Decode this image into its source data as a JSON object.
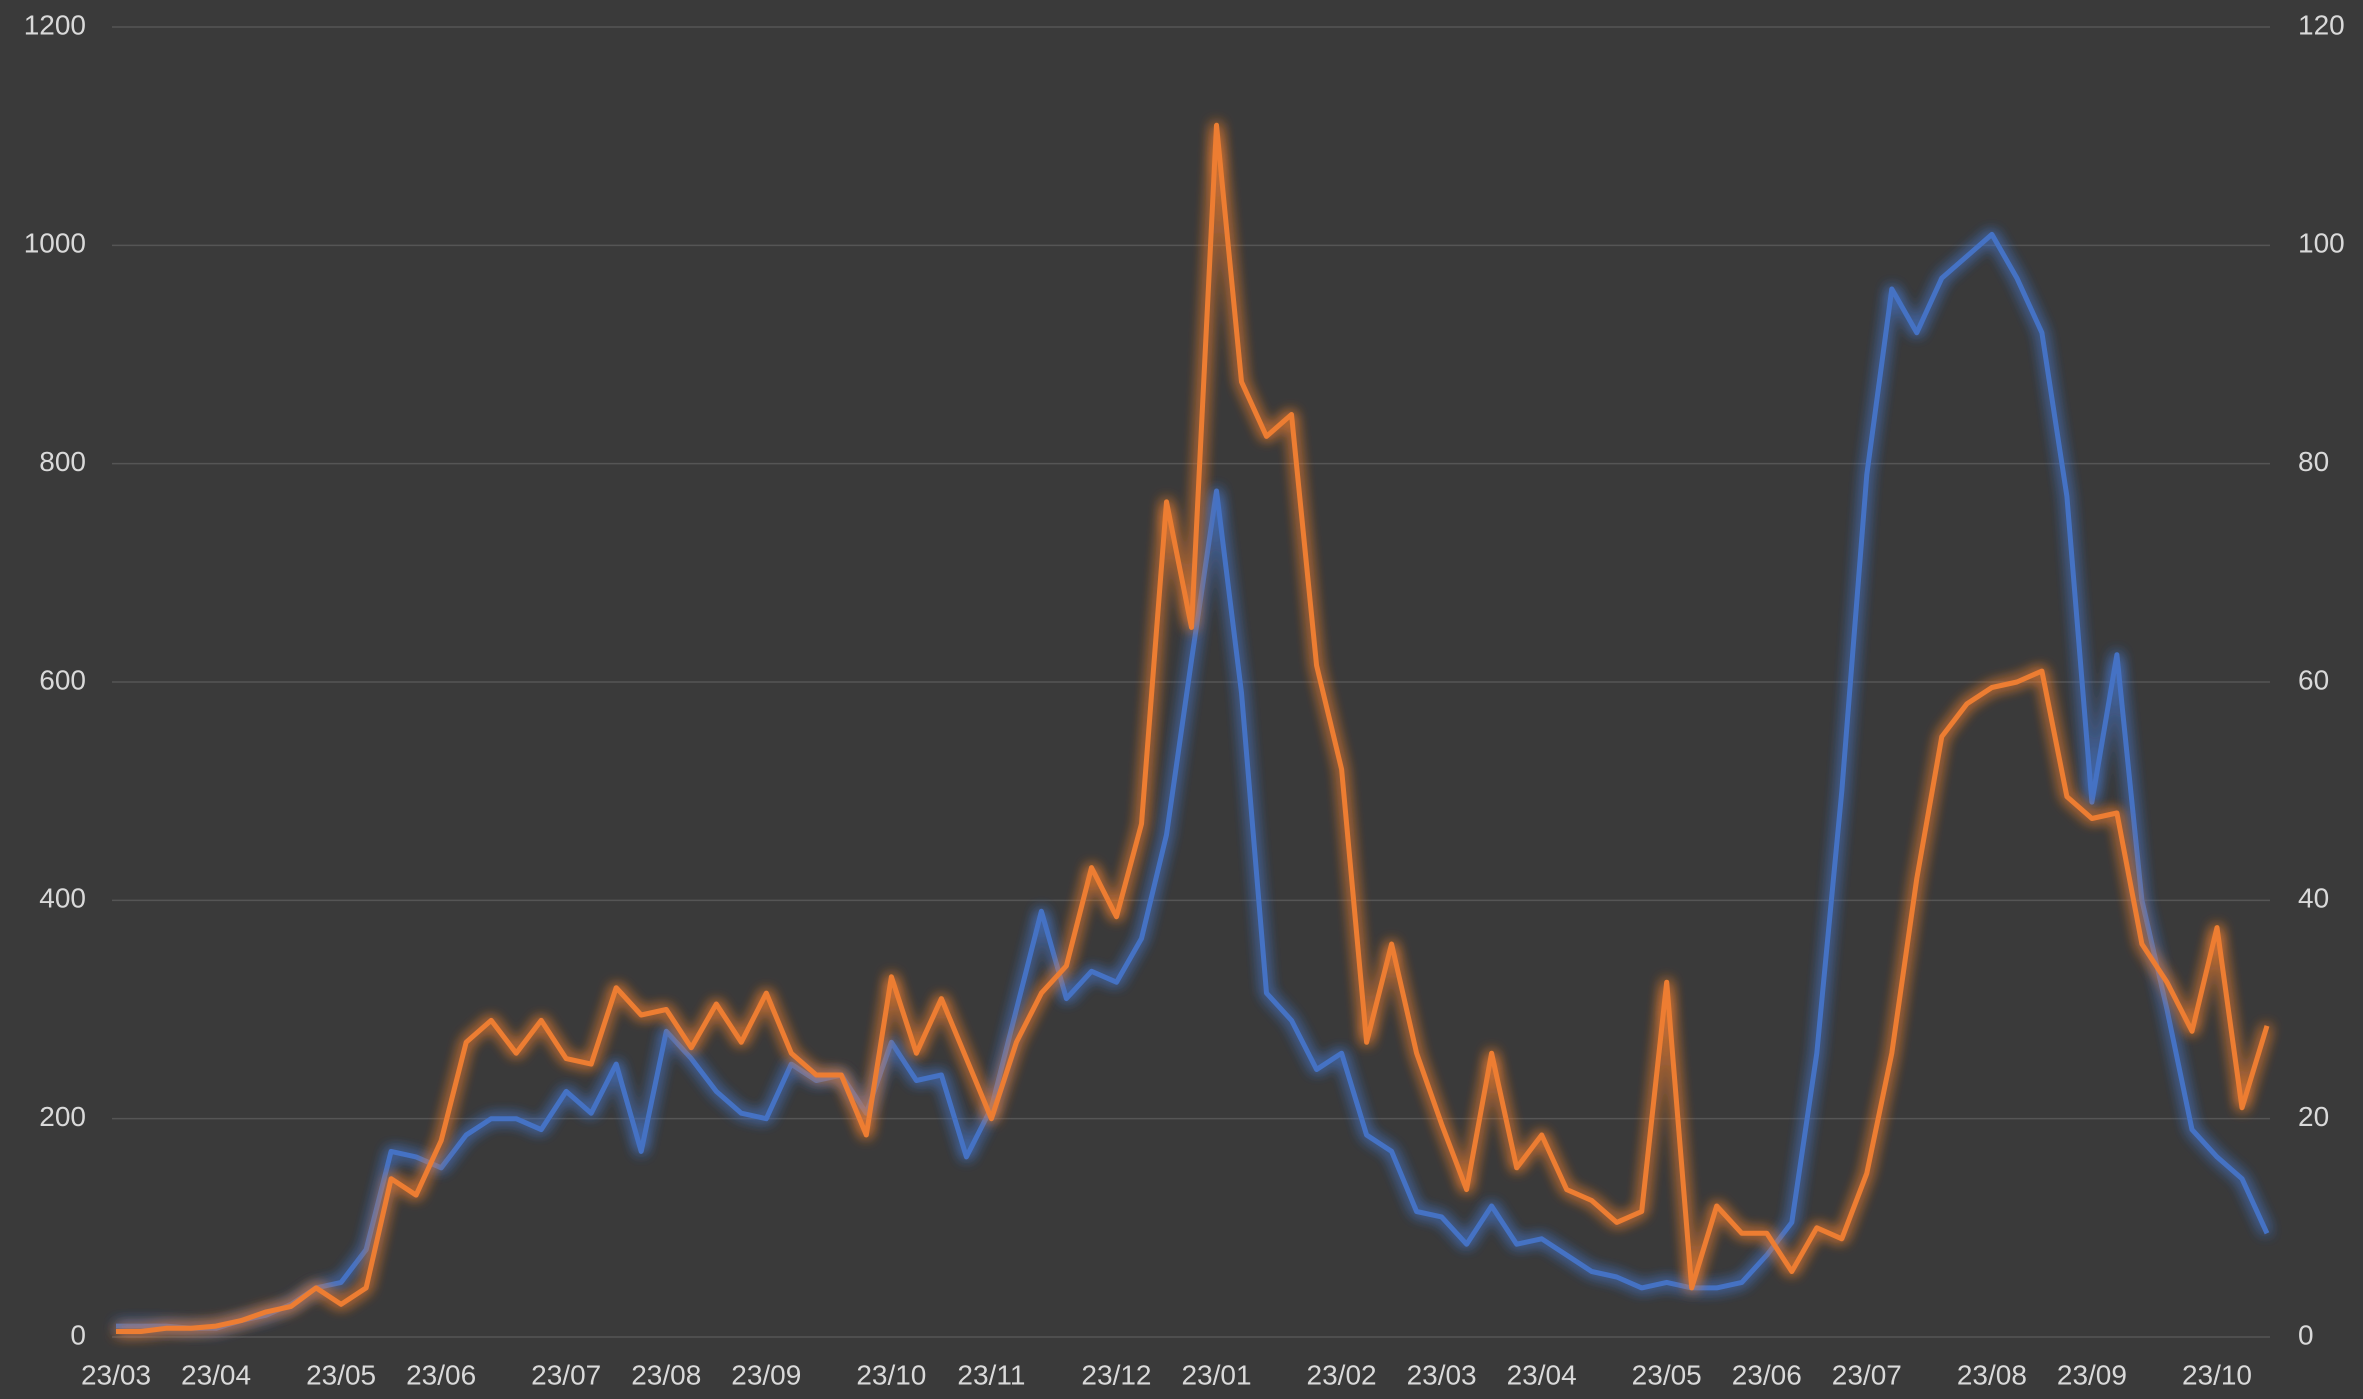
{
  "chart_data": {
    "type": "line",
    "categories": [
      "23/03",
      null,
      null,
      null,
      "23/04",
      null,
      null,
      null,
      null,
      "23/05",
      null,
      null,
      null,
      "23/06",
      null,
      null,
      null,
      null,
      "23/07",
      null,
      null,
      null,
      "23/08",
      null,
      null,
      null,
      "23/09",
      null,
      null,
      null,
      null,
      "23/10",
      null,
      null,
      null,
      "23/11",
      null,
      null,
      null,
      null,
      "23/12",
      null,
      null,
      null,
      "23/01",
      null,
      null,
      null,
      null,
      "23/02",
      null,
      null,
      null,
      "23/03",
      null,
      null,
      null,
      "23/04",
      null,
      null,
      null,
      null,
      "23/05",
      null,
      null,
      null,
      "23/06",
      null,
      null,
      null,
      "23/07",
      null,
      null,
      null,
      null,
      "23/08",
      null,
      null,
      null,
      "23/09",
      null,
      null,
      null,
      null,
      "23/10",
      null,
      null
    ],
    "series": [
      {
        "color": "#4472c4",
        "values": [
          10,
          10,
          10,
          8,
          8,
          15,
          20,
          30,
          45,
          50,
          80,
          170,
          165,
          155,
          185,
          200,
          200,
          190,
          225,
          205,
          250,
          170,
          280,
          255,
          225,
          205,
          200,
          250,
          235,
          240,
          205,
          270,
          235,
          240,
          165,
          210,
          300,
          390,
          310,
          335,
          325,
          365,
          460,
          620,
          775,
          590,
          315,
          290,
          245,
          260,
          185,
          170,
          115,
          110,
          85,
          120,
          85,
          90,
          75,
          60,
          55,
          45,
          50,
          45,
          45,
          50,
          75,
          105,
          260,
          500,
          790,
          960,
          920,
          970,
          990,
          1010,
          970,
          920,
          770,
          490,
          625,
          400,
          300,
          190,
          165,
          145,
          95
        ]
      },
      {
        "color": "#ed7d31",
        "axis": "y2",
        "values": [
          0.5,
          0.5,
          0.8,
          0.8,
          1,
          1.5,
          2.3,
          2.8,
          4.5,
          3,
          4.5,
          14.5,
          13,
          18,
          27,
          29,
          26,
          29,
          25.5,
          25,
          32,
          29.5,
          30,
          26.5,
          30.5,
          27,
          31.5,
          26,
          24,
          24,
          18.5,
          33,
          26,
          31,
          25.5,
          20,
          27,
          31.5,
          34,
          43,
          38.5,
          47,
          76.5,
          65,
          111,
          87.5,
          82.5,
          84.5,
          61.5,
          52,
          27,
          36,
          26,
          19.5,
          13.5,
          26,
          15.5,
          18.5,
          13.5,
          12.5,
          10.5,
          11.5,
          32.5,
          4.5,
          12,
          9.5,
          9.5,
          6,
          10,
          9,
          15,
          26,
          42,
          55,
          58,
          59.5,
          60,
          61,
          49.5,
          47.5,
          48,
          36,
          32.5,
          28,
          37.5,
          21,
          28.5
        ]
      }
    ],
    "ylim": [
      0,
      1200
    ],
    "yticks": [
      0,
      200,
      400,
      600,
      800,
      1000,
      1200
    ],
    "y2lim": [
      0,
      120
    ],
    "y2ticks": [
      0,
      20,
      40,
      60,
      80,
      100,
      120
    ],
    "grid": true
  }
}
